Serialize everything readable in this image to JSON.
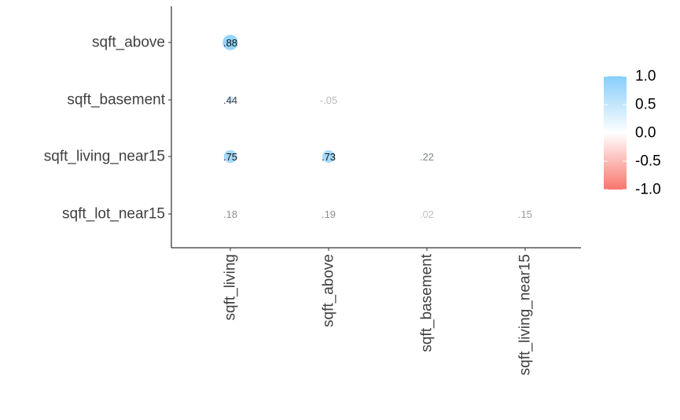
{
  "chart_data": {
    "type": "heatmap",
    "style": "circle-correlogram",
    "x_categories": [
      "sqft_living",
      "sqft_above",
      "sqft_basement",
      "sqft_living_near15"
    ],
    "y_categories": [
      "sqft_above",
      "sqft_basement",
      "sqft_living_near15",
      "sqft_lot_near15"
    ],
    "cells": [
      {
        "x": "sqft_living",
        "y": "sqft_above",
        "value": 0.88,
        "label": ".88"
      },
      {
        "x": "sqft_living",
        "y": "sqft_basement",
        "value": 0.44,
        "label": ".44"
      },
      {
        "x": "sqft_above",
        "y": "sqft_basement",
        "value": -0.05,
        "label": "-.05"
      },
      {
        "x": "sqft_living",
        "y": "sqft_living_near15",
        "value": 0.75,
        "label": ".75"
      },
      {
        "x": "sqft_above",
        "y": "sqft_living_near15",
        "value": 0.73,
        "label": ".73"
      },
      {
        "x": "sqft_basement",
        "y": "sqft_living_near15",
        "value": 0.22,
        "label": ".22"
      },
      {
        "x": "sqft_living",
        "y": "sqft_lot_near15",
        "value": 0.18,
        "label": ".18"
      },
      {
        "x": "sqft_above",
        "y": "sqft_lot_near15",
        "value": 0.19,
        "label": ".19"
      },
      {
        "x": "sqft_basement",
        "y": "sqft_lot_near15",
        "value": 0.02,
        "label": ".02"
      },
      {
        "x": "sqft_living_near15",
        "y": "sqft_lot_near15",
        "value": 0.15,
        "label": ".15"
      }
    ],
    "color_scale": {
      "min": -1.0,
      "max": 1.0,
      "low_color": "#F8766D",
      "mid_color": "#FFFFFF",
      "high_color": "#87CEFA",
      "ticks": [
        "1.0",
        "0.5",
        "0.0",
        "-0.5",
        "-1.0"
      ]
    },
    "legend_position": "right",
    "grid": false,
    "title": "",
    "xlabel": "",
    "ylabel": ""
  }
}
